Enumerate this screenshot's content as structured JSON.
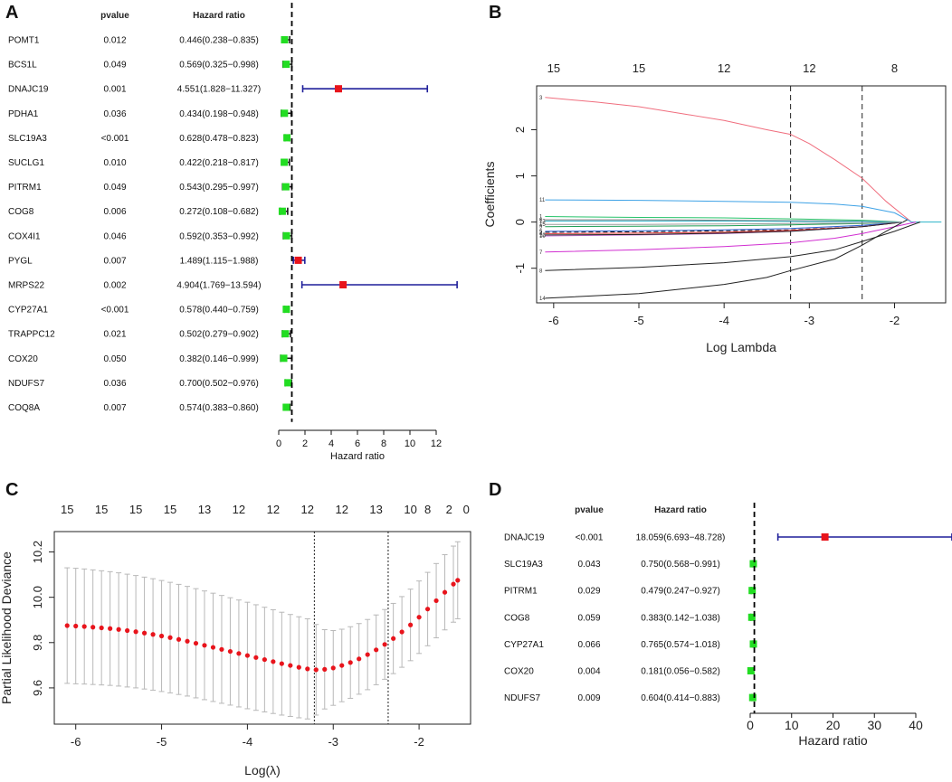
{
  "panel_labels": {
    "a": "A",
    "b": "B",
    "c": "C",
    "d": "D"
  },
  "colors": {
    "ci_line": "#1f1f9a",
    "risk_box": "#e8141c",
    "protect_box": "#22dd22",
    "ref_line": "#000000",
    "cv_point": "#e8141c",
    "cv_bar": "#b8b8b8"
  },
  "chart_data": [
    {
      "id": "A",
      "type": "forest",
      "col_headers": {
        "pvalue": "pvalue",
        "hr": "Hazard ratio"
      },
      "xlabel": "Hazard ratio",
      "xlim": [
        0,
        12
      ],
      "xticks": [
        0,
        2,
        4,
        6,
        8,
        10,
        12
      ],
      "ref_line": 1,
      "rows": [
        {
          "gene": "POMT1",
          "pvalue": "0.012",
          "hr_text": "0.446(0.238−0.835)",
          "hr": 0.446,
          "lo": 0.238,
          "hi": 0.835
        },
        {
          "gene": "BCS1L",
          "pvalue": "0.049",
          "hr_text": "0.569(0.325−0.998)",
          "hr": 0.569,
          "lo": 0.325,
          "hi": 0.998
        },
        {
          "gene": "DNAJC19",
          "pvalue": "0.001",
          "hr_text": "4.551(1.828−11.327)",
          "hr": 4.551,
          "lo": 1.828,
          "hi": 11.327
        },
        {
          "gene": "PDHA1",
          "pvalue": "0.036",
          "hr_text": "0.434(0.198−0.948)",
          "hr": 0.434,
          "lo": 0.198,
          "hi": 0.948
        },
        {
          "gene": "SLC19A3",
          "pvalue": "<0.001",
          "hr_text": "0.628(0.478−0.823)",
          "hr": 0.628,
          "lo": 0.478,
          "hi": 0.823
        },
        {
          "gene": "SUCLG1",
          "pvalue": "0.010",
          "hr_text": "0.422(0.218−0.817)",
          "hr": 0.422,
          "lo": 0.218,
          "hi": 0.817
        },
        {
          "gene": "PITRM1",
          "pvalue": "0.049",
          "hr_text": "0.543(0.295−0.997)",
          "hr": 0.543,
          "lo": 0.295,
          "hi": 0.997
        },
        {
          "gene": "COG8",
          "pvalue": "0.006",
          "hr_text": "0.272(0.108−0.682)",
          "hr": 0.272,
          "lo": 0.108,
          "hi": 0.682
        },
        {
          "gene": "COX4I1",
          "pvalue": "0.046",
          "hr_text": "0.592(0.353−0.992)",
          "hr": 0.592,
          "lo": 0.353,
          "hi": 0.992
        },
        {
          "gene": "PYGL",
          "pvalue": "0.007",
          "hr_text": "1.489(1.115−1.988)",
          "hr": 1.489,
          "lo": 1.115,
          "hi": 1.988
        },
        {
          "gene": "MRPS22",
          "pvalue": "0.002",
          "hr_text": "4.904(1.769−13.594)",
          "hr": 4.904,
          "lo": 1.769,
          "hi": 13.594
        },
        {
          "gene": "CYP27A1",
          "pvalue": "<0.001",
          "hr_text": "0.578(0.440−0.759)",
          "hr": 0.578,
          "lo": 0.44,
          "hi": 0.759
        },
        {
          "gene": "TRAPPC12",
          "pvalue": "0.021",
          "hr_text": "0.502(0.279−0.902)",
          "hr": 0.502,
          "lo": 0.279,
          "hi": 0.902
        },
        {
          "gene": "COX20",
          "pvalue": "0.050",
          "hr_text": "0.382(0.146−0.999)",
          "hr": 0.382,
          "lo": 0.146,
          "hi": 0.999
        },
        {
          "gene": "NDUFS7",
          "pvalue": "0.036",
          "hr_text": "0.700(0.502−0.976)",
          "hr": 0.7,
          "lo": 0.502,
          "hi": 0.976
        },
        {
          "gene": "COQ8A",
          "pvalue": "0.007",
          "hr_text": "0.574(0.383−0.860)",
          "hr": 0.574,
          "lo": 0.383,
          "hi": 0.86
        }
      ]
    },
    {
      "id": "B",
      "type": "line",
      "xlabel": "Log Lambda",
      "ylabel": "Coefficients",
      "xlim": [
        -6.2,
        -1.4
      ],
      "ylim": [
        -1.75,
        2.95
      ],
      "xticks": [
        -6,
        -5,
        -4,
        -3,
        -2
      ],
      "yticks": [
        -1,
        0,
        1,
        2
      ],
      "top_axis": {
        "positions": [
          -6,
          -5,
          -4,
          -3,
          -2
        ],
        "labels": [
          "15",
          "15",
          "12",
          "12",
          "8"
        ]
      },
      "vlines": [
        -3.22,
        -2.38
      ],
      "series": [
        {
          "name": "3",
          "color": "#f06e7e",
          "x": [
            -6.1,
            -5.5,
            -5.0,
            -4.5,
            -4.0,
            -3.5,
            -3.22,
            -3.0,
            -2.7,
            -2.38,
            -2.1,
            -1.9,
            -1.8
          ],
          "y": [
            2.7,
            2.6,
            2.5,
            2.35,
            2.2,
            2.0,
            1.9,
            1.7,
            1.35,
            0.95,
            0.45,
            0.15,
            0.0
          ]
        },
        {
          "name": "11",
          "color": "#3ea2e6",
          "x": [
            -6.1,
            -5.0,
            -4.0,
            -3.22,
            -2.7,
            -2.38,
            -2.0,
            -1.8
          ],
          "y": [
            0.48,
            0.47,
            0.45,
            0.43,
            0.39,
            0.34,
            0.2,
            0.0
          ]
        },
        {
          "name": "7",
          "color": "#d12fd1",
          "x": [
            -6.1,
            -5.0,
            -4.0,
            -3.22,
            -2.7,
            -2.38,
            -2.0,
            -1.75
          ],
          "y": [
            -0.65,
            -0.6,
            -0.53,
            -0.45,
            -0.35,
            -0.25,
            -0.1,
            0.0
          ]
        },
        {
          "name": "8",
          "color": "#222222",
          "x": [
            -6.1,
            -5.0,
            -4.0,
            -3.22,
            -2.7,
            -2.38,
            -2.0,
            -1.7
          ],
          "y": [
            -1.05,
            -0.98,
            -0.88,
            -0.75,
            -0.6,
            -0.42,
            -0.2,
            0.0
          ]
        },
        {
          "name": "14",
          "color": "#222222",
          "x": [
            -6.1,
            -5.0,
            -4.0,
            -3.5,
            -3.22,
            -2.7,
            -2.38,
            -2.1,
            -1.95,
            -1.85
          ],
          "y": [
            -1.65,
            -1.55,
            -1.35,
            -1.2,
            -1.05,
            -0.8,
            -0.5,
            -0.2,
            -0.05,
            0.05
          ]
        },
        {
          "name": "1",
          "color": "#27c36a",
          "x": [
            -6.1,
            -5.0,
            -4.0,
            -3.22,
            -2.38,
            -1.9
          ],
          "y": [
            0.12,
            0.1,
            0.09,
            0.07,
            0.04,
            0.0
          ]
        },
        {
          "name": "6",
          "color": "#7a7a7a",
          "x": [
            -6.1,
            -5.0,
            -4.0,
            -3.22,
            -2.38,
            -1.9
          ],
          "y": [
            0.05,
            0.05,
            0.04,
            0.03,
            0.02,
            0.0
          ]
        },
        {
          "name": "2",
          "color": "#1a1a1a",
          "x": [
            -6.1,
            -5.0,
            -4.0,
            -3.22,
            -2.38,
            -1.9
          ],
          "y": [
            -0.22,
            -0.21,
            -0.19,
            -0.17,
            -0.1,
            0.0
          ]
        },
        {
          "name": "4",
          "color": "#e03131",
          "x": [
            -6.1,
            -5.0,
            -4.0,
            -3.22,
            -2.38,
            -1.9
          ],
          "y": [
            -0.25,
            -0.24,
            -0.22,
            -0.18,
            -0.1,
            0.0
          ]
        },
        {
          "name": "5",
          "color": "#2d5fd1",
          "x": [
            -6.1,
            -5.0,
            -4.0,
            -3.22,
            -2.38,
            -1.9
          ],
          "y": [
            -0.2,
            -0.19,
            -0.17,
            -0.14,
            -0.07,
            0.0
          ]
        },
        {
          "name": "9",
          "color": "#1e9e54",
          "x": [
            -6.1,
            -5.0,
            -4.0,
            -3.22,
            -2.38,
            -1.9
          ],
          "y": [
            -0.1,
            -0.09,
            -0.08,
            -0.06,
            -0.03,
            0.0
          ]
        },
        {
          "name": "10",
          "color": "#c06ad6",
          "x": [
            -6.1,
            -5.0,
            -4.0,
            -3.22,
            -2.38,
            -1.9
          ],
          "y": [
            -0.3,
            -0.28,
            -0.25,
            -0.2,
            -0.1,
            0.0
          ]
        },
        {
          "name": "12",
          "color": "#222222",
          "x": [
            -6.1,
            -5.0,
            -4.0,
            -3.22,
            -2.38,
            -1.9
          ],
          "y": [
            -0.28,
            -0.27,
            -0.24,
            -0.2,
            -0.1,
            0.0
          ]
        },
        {
          "name": "13",
          "color": "#2bb3c9",
          "x": [
            -6.1,
            -5.0,
            -4.0,
            -3.22,
            -2.38,
            -1.9
          ],
          "y": [
            0.02,
            0.02,
            0.02,
            0.015,
            0.01,
            0.0
          ]
        },
        {
          "name": "15",
          "color": "#9a9a9a",
          "x": [
            -6.1,
            -5.0,
            -4.0,
            -3.22,
            -2.38,
            -1.9
          ],
          "y": [
            -0.05,
            -0.05,
            -0.04,
            -0.03,
            -0.02,
            0.0
          ]
        }
      ]
    },
    {
      "id": "C",
      "type": "scatter",
      "xlabel": "Log(λ)",
      "ylabel": "Partial Likelihood Deviance",
      "xlim": [
        -6.25,
        -1.4
      ],
      "ylim": [
        9.44,
        10.29
      ],
      "xticks": [
        -6,
        -5,
        -4,
        -3,
        -2
      ],
      "yticks": [
        9.6,
        9.8,
        10.0,
        10.2
      ],
      "top_axis": {
        "positions": [
          -6.1,
          -5.7,
          -5.3,
          -4.9,
          -4.5,
          -4.1,
          -3.7,
          -3.3,
          -2.9,
          -2.5,
          -2.1,
          -1.9,
          -1.65,
          -1.45
        ],
        "labels": [
          "15",
          "15",
          "15",
          "15",
          "13",
          "12",
          "12",
          "12",
          "12",
          "13",
          "10",
          "8",
          "2",
          "0"
        ]
      },
      "vlines": [
        -3.22,
        -2.36
      ],
      "x": [
        -6.1,
        -6.0,
        -5.9,
        -5.8,
        -5.7,
        -5.6,
        -5.5,
        -5.4,
        -5.3,
        -5.2,
        -5.1,
        -5.0,
        -4.9,
        -4.8,
        -4.7,
        -4.6,
        -4.5,
        -4.4,
        -4.3,
        -4.2,
        -4.1,
        -4.0,
        -3.9,
        -3.8,
        -3.7,
        -3.6,
        -3.5,
        -3.4,
        -3.3,
        -3.2,
        -3.1,
        -3.0,
        -2.9,
        -2.8,
        -2.7,
        -2.6,
        -2.5,
        -2.4,
        -2.3,
        -2.2,
        -2.1,
        -2.0,
        -1.9,
        -1.8,
        -1.7,
        -1.6,
        -1.55
      ],
      "y": [
        9.875,
        9.873,
        9.871,
        9.868,
        9.865,
        9.862,
        9.858,
        9.853,
        9.848,
        9.842,
        9.836,
        9.829,
        9.822,
        9.814,
        9.806,
        9.797,
        9.788,
        9.779,
        9.77,
        9.761,
        9.752,
        9.743,
        9.734,
        9.725,
        9.716,
        9.707,
        9.699,
        9.691,
        9.684,
        9.68,
        9.682,
        9.688,
        9.699,
        9.712,
        9.728,
        9.747,
        9.768,
        9.792,
        9.818,
        9.847,
        9.878,
        9.912,
        9.948,
        9.985,
        10.022,
        10.058,
        10.075
      ],
      "err": [
        0.255,
        0.255,
        0.254,
        0.253,
        0.252,
        0.251,
        0.25,
        0.249,
        0.248,
        0.247,
        0.246,
        0.245,
        0.244,
        0.243,
        0.242,
        0.241,
        0.24,
        0.239,
        0.238,
        0.237,
        0.236,
        0.235,
        0.233,
        0.231,
        0.229,
        0.227,
        0.225,
        0.223,
        0.221,
        0.2,
        0.175,
        0.165,
        0.16,
        0.158,
        0.156,
        0.155,
        0.154,
        0.154,
        0.155,
        0.156,
        0.158,
        0.16,
        0.162,
        0.164,
        0.166,
        0.168,
        0.17
      ]
    },
    {
      "id": "D",
      "type": "forest",
      "col_headers": {
        "pvalue": "pvalue",
        "hr": "Hazard ratio"
      },
      "xlabel": "Hazard ratio",
      "xlim": [
        0,
        40
      ],
      "xticks": [
        0,
        10,
        20,
        30,
        40
      ],
      "ref_line": 1,
      "rows": [
        {
          "gene": "DNAJC19",
          "pvalue": "<0.001",
          "hr_text": "18.059(6.693−48.728)",
          "hr": 18.059,
          "lo": 6.693,
          "hi": 48.728
        },
        {
          "gene": "SLC19A3",
          "pvalue": "0.043",
          "hr_text": "0.750(0.568−0.991)",
          "hr": 0.75,
          "lo": 0.568,
          "hi": 0.991
        },
        {
          "gene": "PITRM1",
          "pvalue": "0.029",
          "hr_text": "0.479(0.247−0.927)",
          "hr": 0.479,
          "lo": 0.247,
          "hi": 0.927
        },
        {
          "gene": "COG8",
          "pvalue": "0.059",
          "hr_text": "0.383(0.142−1.038)",
          "hr": 0.383,
          "lo": 0.142,
          "hi": 1.038
        },
        {
          "gene": "CYP27A1",
          "pvalue": "0.066",
          "hr_text": "0.765(0.574−1.018)",
          "hr": 0.765,
          "lo": 0.574,
          "hi": 1.018
        },
        {
          "gene": "COX20",
          "pvalue": "0.004",
          "hr_text": "0.181(0.056−0.582)",
          "hr": 0.181,
          "lo": 0.056,
          "hi": 0.582
        },
        {
          "gene": "NDUFS7",
          "pvalue": "0.009",
          "hr_text": "0.604(0.414−0.883)",
          "hr": 0.604,
          "lo": 0.414,
          "hi": 0.883
        }
      ]
    }
  ]
}
